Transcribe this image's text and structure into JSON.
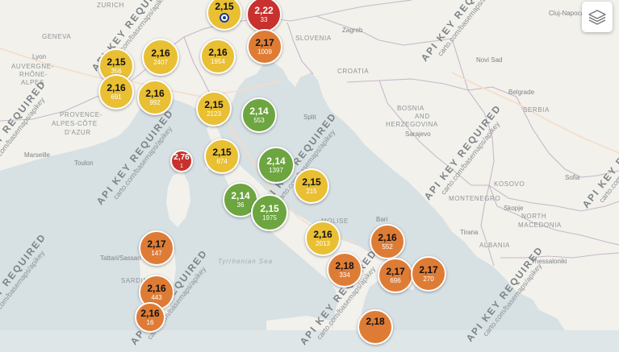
{
  "colors": {
    "yellow": "#e9bf33",
    "orange": "#de7c36",
    "red": "#c8312e",
    "green": "#6da540",
    "land": "#f3f2ee",
    "sea": "#d5dfe2",
    "border": "#c9b8c8"
  },
  "watermark": {
    "title": "API KEY REQUIRED",
    "url": "carto.com/basemaps/apikey"
  },
  "layer_control": {
    "icon": "layers-icon"
  },
  "labels": [
    {
      "text": "GENEVA",
      "type": "country"
    },
    {
      "text": "Lyon",
      "type": "city"
    },
    {
      "text": "AUVERGNE-",
      "type": "country"
    },
    {
      "text": "RHÔNE-",
      "type": "country"
    },
    {
      "text": "ALPES",
      "type": "country"
    },
    {
      "text": "PROVENCE-",
      "type": "country"
    },
    {
      "text": "ALPES-CÔTE",
      "type": "country"
    },
    {
      "text": "D'AZUR",
      "type": "country"
    },
    {
      "text": "Marseille",
      "type": "city"
    },
    {
      "text": "Toulon",
      "type": "city"
    },
    {
      "text": "SLOVENIA",
      "type": "country"
    },
    {
      "text": "Zagreb",
      "type": "city"
    },
    {
      "text": "CROATIA",
      "type": "country"
    },
    {
      "text": "BOSNIA",
      "type": "country"
    },
    {
      "text": "AND",
      "type": "country"
    },
    {
      "text": "HERZEGOVINA",
      "type": "country"
    },
    {
      "text": "Sarajevo",
      "type": "city"
    },
    {
      "text": "Split",
      "type": "city"
    },
    {
      "text": "SERBIA",
      "type": "country"
    },
    {
      "text": "KOSOVO",
      "type": "country"
    },
    {
      "text": "MONTENEGRO",
      "type": "country"
    },
    {
      "text": "Skopje",
      "type": "city"
    },
    {
      "text": "NORTH",
      "type": "country"
    },
    {
      "text": "MACEDONIA",
      "type": "country"
    },
    {
      "text": "ALBANIA",
      "type": "country"
    },
    {
      "text": "Tirana",
      "type": "city"
    },
    {
      "text": "Thessaloniki",
      "type": "city"
    },
    {
      "text": "Sofia",
      "type": "city"
    },
    {
      "text": "Cluj-Napoca",
      "type": "city"
    },
    {
      "text": "Novi Sad",
      "type": "city"
    },
    {
      "text": "Belgrade",
      "type": "city"
    },
    {
      "text": "Tyrrhenian Sea",
      "type": "sea"
    },
    {
      "text": "Tattari/Sassari",
      "type": "city"
    },
    {
      "text": "MOLISE",
      "type": "country"
    },
    {
      "text": "Bari",
      "type": "city"
    },
    {
      "text": "SARDINIA",
      "type": "country"
    },
    {
      "text": "ZURICH",
      "type": "country"
    }
  ],
  "markers": [
    {
      "value": "2,15",
      "count": "",
      "color": "yellow",
      "pin": true
    },
    {
      "value": "2,22",
      "count": "33",
      "color": "red"
    },
    {
      "value": "2,17",
      "count": "1009",
      "color": "orange"
    },
    {
      "value": "2,15",
      "count": "356",
      "color": "yellow"
    },
    {
      "value": "2,16",
      "count": "2407",
      "color": "yellow"
    },
    {
      "value": "2,16",
      "count": "1954",
      "color": "yellow"
    },
    {
      "value": "2,16",
      "count": "691",
      "color": "yellow"
    },
    {
      "value": "2,16",
      "count": "992",
      "color": "yellow"
    },
    {
      "value": "2,15",
      "count": "2123",
      "color": "yellow"
    },
    {
      "value": "2,14",
      "count": "553",
      "color": "green"
    },
    {
      "value": "2,76",
      "count": "1",
      "color": "red"
    },
    {
      "value": "2,15",
      "count": "674",
      "color": "yellow"
    },
    {
      "value": "2,14",
      "count": "1397",
      "color": "green"
    },
    {
      "value": "2,15",
      "count": "215",
      "color": "yellow"
    },
    {
      "value": "2,14",
      "count": "36",
      "color": "green"
    },
    {
      "value": "2,15",
      "count": "1975",
      "color": "green"
    },
    {
      "value": "2,16",
      "count": "2013",
      "color": "yellow"
    },
    {
      "value": "2,16",
      "count": "552",
      "color": "orange"
    },
    {
      "value": "2,17",
      "count": "147",
      "color": "orange"
    },
    {
      "value": "2,18",
      "count": "334",
      "color": "orange"
    },
    {
      "value": "2,17",
      "count": "696",
      "color": "orange"
    },
    {
      "value": "2,17",
      "count": "270",
      "color": "orange"
    },
    {
      "value": "2,16",
      "count": "443",
      "color": "orange"
    },
    {
      "value": "2,16",
      "count": "16",
      "color": "orange"
    },
    {
      "value": "2,18",
      "count": "",
      "color": "orange"
    }
  ]
}
